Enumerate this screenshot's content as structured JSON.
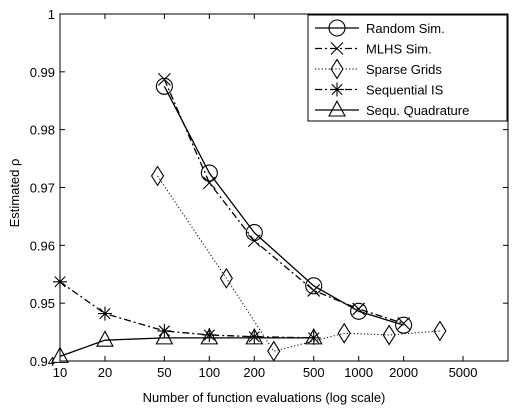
{
  "chart_data": {
    "type": "line",
    "xlabel": "Number of function evaluations (log scale)",
    "ylabel": "Estimated ρ",
    "xscale": "log",
    "xlim": [
      10,
      10000
    ],
    "ylim": [
      0.94,
      1.0
    ],
    "grid": false,
    "legend_position": "top-right",
    "x_ticks": [
      10,
      20,
      50,
      100,
      200,
      500,
      1000,
      2000,
      5000
    ],
    "x_tick_labels": [
      "10",
      "20",
      "50",
      "100",
      "200",
      "500",
      "1000",
      "2000",
      "5000"
    ],
    "y_ticks": [
      0.94,
      0.95,
      0.96,
      0.97,
      0.98,
      0.99,
      1.0
    ],
    "y_tick_labels": [
      "0.94",
      "0.95",
      "0.96",
      "0.97",
      "0.98",
      "0.99",
      "1"
    ],
    "series": [
      {
        "name": "Random Sim.",
        "line": "solid",
        "marker": "circle",
        "x": [
          50,
          100,
          200,
          500,
          1000,
          2000
        ],
        "y": [
          0.9875,
          0.9725,
          0.9622,
          0.953,
          0.9486,
          0.9462
        ]
      },
      {
        "name": "MLHS Sim.",
        "line": "dashdot",
        "marker": "x",
        "x": [
          50,
          100,
          200,
          500,
          1000,
          2000
        ],
        "y": [
          0.9887,
          0.9708,
          0.9608,
          0.9522,
          0.949,
          0.9465
        ]
      },
      {
        "name": "Sparse Grids",
        "line": "dotted",
        "marker": "diamond",
        "x": [
          45,
          130,
          270,
          800,
          1600,
          3500
        ],
        "y": [
          0.972,
          0.9543,
          0.9417,
          0.9448,
          0.9445,
          0.9452
        ]
      },
      {
        "name": "Sequential IS",
        "line": "dashdot",
        "marker": "star",
        "x": [
          10,
          20,
          50,
          100,
          200,
          500
        ],
        "y": [
          0.9537,
          0.9482,
          0.9452,
          0.9445,
          0.9442,
          0.944
        ]
      },
      {
        "name": "Sequ. Quadrature",
        "line": "solid",
        "marker": "triangle",
        "x": [
          10,
          20,
          50,
          100,
          200,
          500
        ],
        "y": [
          0.9408,
          0.9436,
          0.944,
          0.944,
          0.944,
          0.944
        ]
      }
    ]
  }
}
